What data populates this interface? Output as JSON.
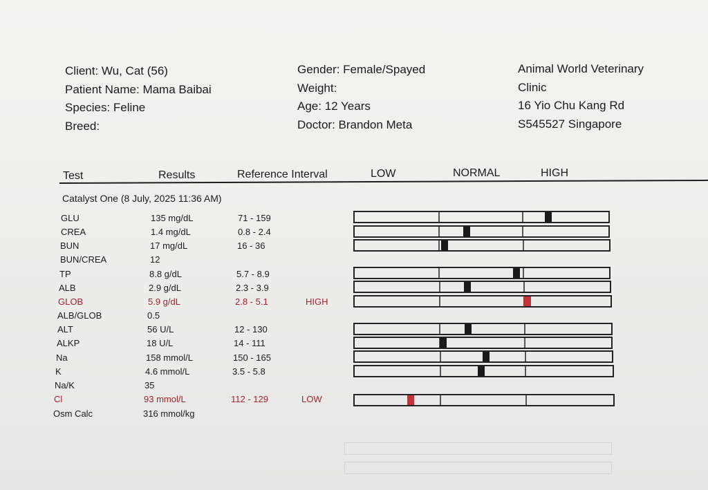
{
  "header": {
    "client": "Client: Wu, Cat (56)",
    "patient_name": "Patient Name: Mama Baibai",
    "species": "Species: Feline",
    "breed": "Breed:",
    "gender": "Gender: Female/Spayed",
    "weight": "Weight:",
    "age": "Age: 12 Years",
    "doctor": "Doctor: Brandon Meta",
    "clinic_line1": "Animal World Veterinary",
    "clinic_line2": "Clinic",
    "address_line1": "16 Yio Chu Kang Rd",
    "address_line2": "S545527 Singapore"
  },
  "columns": {
    "test": "Test",
    "results": "Results",
    "reference": "Reference Interval",
    "low": "LOW",
    "normal": "NORMAL",
    "high": "HIGH"
  },
  "section_title": "Catalyst One (8 July, 2025 11:36 AM)",
  "rows": [
    {
      "test": "GLU",
      "result": "135 mg/dL",
      "ref": "71 - 159",
      "flag": "",
      "gauge_level": 0.77
    },
    {
      "test": "CREA",
      "result": "1.4 mg/dL",
      "ref": "0.8 - 2.4",
      "flag": "",
      "gauge_level": 0.44
    },
    {
      "test": "BUN",
      "result": "17 mg/dL",
      "ref": "16 - 36",
      "flag": "",
      "gauge_level": 0.35
    },
    {
      "test": "BUN/CREA",
      "result": "12",
      "ref": "",
      "flag": "",
      "gauge_level": null
    },
    {
      "test": "TP",
      "result": "8.8 g/dL",
      "ref": "5.7 - 8.9",
      "flag": "",
      "gauge_level": 0.64
    },
    {
      "test": "ALB",
      "result": "2.9 g/dL",
      "ref": "2.3 - 3.9",
      "flag": "",
      "gauge_level": 0.44
    },
    {
      "test": "GLOB",
      "result": "5.9 g/dL",
      "ref": "2.8 - 5.1",
      "flag": "HIGH",
      "gauge_level": 0.68
    },
    {
      "test": "ALB/GLOB",
      "result": "0.5",
      "ref": "",
      "flag": "",
      "gauge_level": null
    },
    {
      "test": "ALT",
      "result": "56 U/L",
      "ref": "12 - 130",
      "flag": "",
      "gauge_level": 0.44
    },
    {
      "test": "ALKP",
      "result": "18 U/L",
      "ref": "14 - 111",
      "flag": "",
      "gauge_level": 0.34
    },
    {
      "test": "Na",
      "result": "158 mmol/L",
      "ref": "150 - 165",
      "flag": "",
      "gauge_level": 0.51
    },
    {
      "test": "K",
      "result": "4.6 mmol/L",
      "ref": "3.5 - 5.8",
      "flag": "",
      "gauge_level": 0.49
    },
    {
      "test": "Na/K",
      "result": "35",
      "ref": "",
      "flag": "",
      "gauge_level": null
    },
    {
      "test": "Cl",
      "result": "93 mmol/L",
      "ref": "112 - 129",
      "flag": "LOW",
      "gauge_level": 0.21
    },
    {
      "test": "Osm Calc",
      "result": "316 mmol/kg",
      "ref": "",
      "flag": "",
      "gauge_level": null
    }
  ],
  "colors": {
    "alert": "#a4232c",
    "marker": "#1a1a1a",
    "alert_marker": "#c4323a"
  }
}
